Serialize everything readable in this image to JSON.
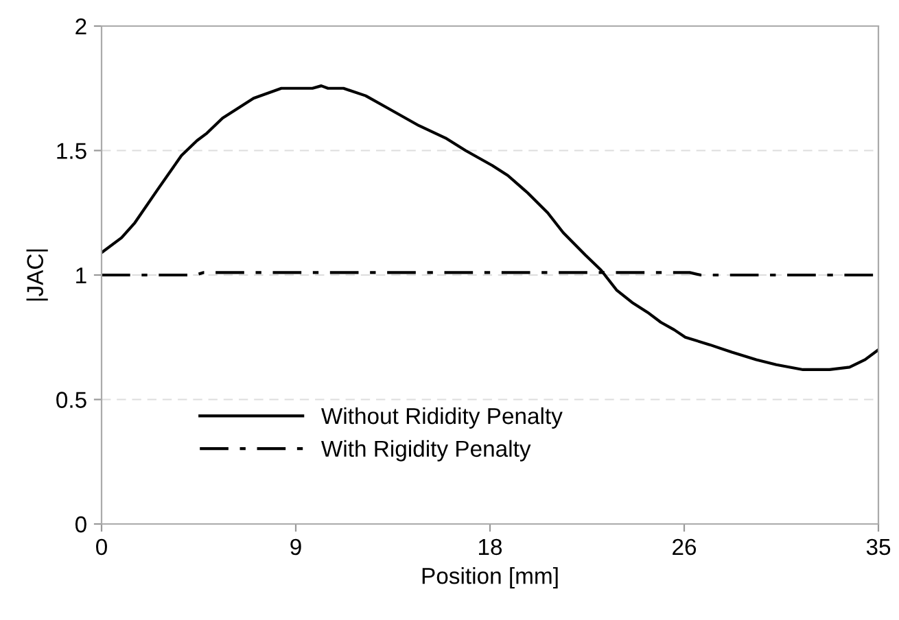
{
  "chart_data": {
    "type": "line",
    "xlabel": "Position [mm]",
    "ylabel": "|JAC|",
    "xlim": [
      0,
      35
    ],
    "xticks": [
      0,
      {
        "value": 8.75,
        "label": "9"
      },
      {
        "value": 17.5,
        "label": "18"
      },
      {
        "value": 26.25,
        "label": "26"
      },
      35
    ],
    "ylim": [
      0,
      2
    ],
    "yticks": [
      0,
      0.5,
      1,
      1.5,
      2
    ],
    "grid": "y",
    "legend": "bottom left",
    "series": [
      {
        "name": "Without Rididity Penalty",
        "color": "#000000",
        "line_style": "solid",
        "x": [
          0,
          0.9,
          1.5,
          2.5,
          3.6,
          4.3,
          4.75,
          5.45,
          6.15,
          6.85,
          8.1,
          9.5,
          9.9,
          10.2,
          10.9,
          11.9,
          12.9,
          14.3,
          15.5,
          16.4,
          17.6,
          18.3,
          19.2,
          20.1,
          20.8,
          21.8,
          22.5,
          23.2,
          23.9,
          24.6,
          25.2,
          25.8,
          26.3,
          27.4,
          28.4,
          29.5,
          30.4,
          31.6,
          32.8,
          33.7,
          34.4,
          35
        ],
        "values": [
          1.09,
          1.15,
          1.21,
          1.34,
          1.48,
          1.54,
          1.57,
          1.63,
          1.67,
          1.71,
          1.75,
          1.75,
          1.76,
          1.75,
          1.75,
          1.72,
          1.67,
          1.6,
          1.55,
          1.5,
          1.44,
          1.4,
          1.33,
          1.25,
          1.17,
          1.08,
          1.02,
          0.94,
          0.89,
          0.85,
          0.81,
          0.78,
          0.75,
          0.72,
          0.69,
          0.66,
          0.64,
          0.62,
          0.62,
          0.63,
          0.66,
          0.7
        ]
      },
      {
        "name": "With Rigidity Penalty",
        "color": "#000000",
        "line_style": "dashdot",
        "x": [
          0,
          4.2,
          4.6,
          26.5,
          27,
          35
        ],
        "values": [
          1.0,
          1.0,
          1.01,
          1.01,
          1.0,
          1.0
        ]
      }
    ]
  }
}
